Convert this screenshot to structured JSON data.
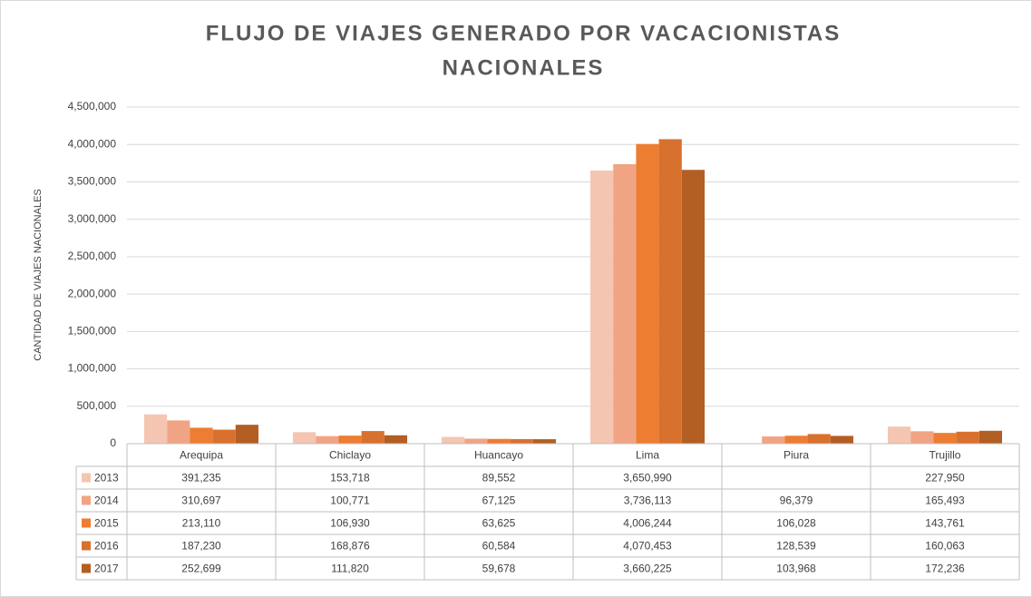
{
  "chart_data": {
    "type": "bar",
    "title": "FLUJO DE VIAJES GENERADO POR VACACIONISTAS",
    "title_line2": "NACIONALES",
    "y_label": "CANTIDAD DE VIAJES NACIONALES",
    "categories": [
      "Arequipa",
      "Chiclayo",
      "Huancayo",
      "Lima",
      "Piura",
      "Trujillo"
    ],
    "series": [
      {
        "name": "2013",
        "color": "#f4c5b1",
        "values": [
          391235,
          153718,
          89552,
          3650990,
          null,
          227950
        ],
        "value_labels": [
          "391,235",
          "153,718",
          "89,552",
          "3,650,990",
          null,
          "227,950"
        ]
      },
      {
        "name": "2014",
        "color": "#f0a483",
        "values": [
          310697,
          100771,
          67125,
          3736113,
          96379,
          165493
        ],
        "value_labels": [
          "310,697",
          "100,771",
          "67,125",
          "3,736,113",
          "96,379",
          "165,493"
        ]
      },
      {
        "name": "2015",
        "color": "#ed7d31",
        "values": [
          213110,
          106930,
          63625,
          4006244,
          106028,
          143761
        ],
        "value_labels": [
          "213,110",
          "106,930",
          "63,625",
          "4,006,244",
          "106,028",
          "143,761"
        ]
      },
      {
        "name": "2016",
        "color": "#d8712d",
        "values": [
          187230,
          168876,
          60584,
          4070453,
          128539,
          160063
        ],
        "value_labels": [
          "187,230",
          "168,876",
          "60,584",
          "4,070,453",
          "128,539",
          "160,063"
        ]
      },
      {
        "name": "2017",
        "color": "#b35e22",
        "values": [
          252699,
          111820,
          59678,
          3660225,
          103968,
          172236
        ],
        "value_labels": [
          "252,699",
          "111,820",
          "59,678",
          "3,660,225",
          "103,968",
          "172,236"
        ]
      }
    ],
    "ylim": [
      0,
      4500000
    ],
    "yticks": [
      0,
      {
        "value": 500000,
        "label": "500,000"
      },
      {
        "value": 1000000,
        "label": "1,000,000"
      },
      {
        "value": 1500000,
        "label": "1,500,000"
      },
      {
        "value": 2000000,
        "label": "2,000,000"
      },
      {
        "value": 2500000,
        "label": "2,500,000"
      },
      {
        "value": 3000000,
        "label": "3,000,000"
      },
      {
        "value": 3500000,
        "label": "3,500,000"
      },
      {
        "value": 4000000,
        "label": "4,000,000"
      },
      {
        "value": 4500000,
        "label": "4,500,000"
      }
    ],
    "grid": true
  }
}
